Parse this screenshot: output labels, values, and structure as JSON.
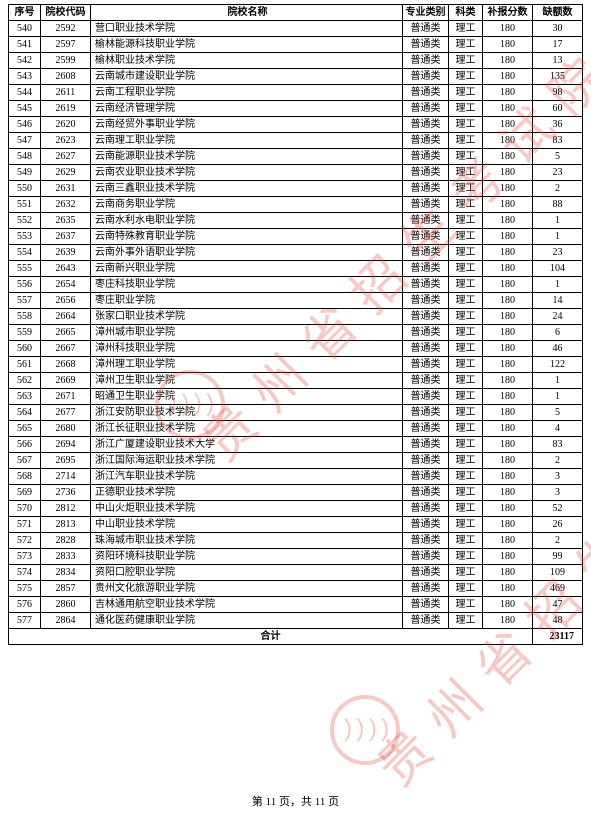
{
  "headers": {
    "seq": "序号",
    "code": "院校代码",
    "name": "院校名称",
    "major": "专业类别",
    "subj": "科类",
    "score": "补报分数",
    "vac": "缺额数"
  },
  "common": {
    "major": "普通类",
    "subj": "理工",
    "score": "180"
  },
  "rows": [
    {
      "seq": "540",
      "code": "2592",
      "name": "营口职业技术学院",
      "vac": "30"
    },
    {
      "seq": "541",
      "code": "2597",
      "name": "榆林能源科技职业学院",
      "vac": "17"
    },
    {
      "seq": "542",
      "code": "2599",
      "name": "榆林职业技术学院",
      "vac": "13"
    },
    {
      "seq": "543",
      "code": "2608",
      "name": "云南城市建设职业学院",
      "vac": "135"
    },
    {
      "seq": "544",
      "code": "2611",
      "name": "云南工程职业学院",
      "vac": "98"
    },
    {
      "seq": "545",
      "code": "2619",
      "name": "云南经济管理学院",
      "vac": "60"
    },
    {
      "seq": "546",
      "code": "2620",
      "name": "云南经贸外事职业学院",
      "vac": "36"
    },
    {
      "seq": "547",
      "code": "2623",
      "name": "云南理工职业学院",
      "vac": "83"
    },
    {
      "seq": "548",
      "code": "2627",
      "name": "云南能源职业技术学院",
      "vac": "5"
    },
    {
      "seq": "549",
      "code": "2629",
      "name": "云南农业职业技术学院",
      "vac": "23"
    },
    {
      "seq": "550",
      "code": "2631",
      "name": "云南三鑫职业技术学院",
      "vac": "2"
    },
    {
      "seq": "551",
      "code": "2632",
      "name": "云南商务职业学院",
      "vac": "88"
    },
    {
      "seq": "552",
      "code": "2635",
      "name": "云南水利水电职业学院",
      "vac": "1"
    },
    {
      "seq": "553",
      "code": "2637",
      "name": "云南特殊教育职业学院",
      "vac": "1"
    },
    {
      "seq": "554",
      "code": "2639",
      "name": "云南外事外语职业学院",
      "vac": "23"
    },
    {
      "seq": "555",
      "code": "2643",
      "name": "云南新兴职业学院",
      "vac": "104"
    },
    {
      "seq": "556",
      "code": "2654",
      "name": "枣庄科技职业学院",
      "vac": "1"
    },
    {
      "seq": "557",
      "code": "2656",
      "name": "枣庄职业学院",
      "vac": "14"
    },
    {
      "seq": "558",
      "code": "2664",
      "name": "张家口职业技术学院",
      "vac": "24"
    },
    {
      "seq": "559",
      "code": "2665",
      "name": "漳州城市职业学院",
      "vac": "6"
    },
    {
      "seq": "560",
      "code": "2667",
      "name": "漳州科技职业学院",
      "vac": "46"
    },
    {
      "seq": "561",
      "code": "2668",
      "name": "漳州理工职业学院",
      "vac": "122"
    },
    {
      "seq": "562",
      "code": "2669",
      "name": "漳州卫生职业学院",
      "vac": "1"
    },
    {
      "seq": "563",
      "code": "2671",
      "name": "昭通卫生职业学院",
      "vac": "1"
    },
    {
      "seq": "564",
      "code": "2677",
      "name": "浙江安防职业技术学院",
      "vac": "5"
    },
    {
      "seq": "565",
      "code": "2680",
      "name": "浙江长征职业技术学院",
      "vac": "4"
    },
    {
      "seq": "566",
      "code": "2694",
      "name": "浙江广厦建设职业技术大学",
      "vac": "83"
    },
    {
      "seq": "567",
      "code": "2695",
      "name": "浙江国际海运职业技术学院",
      "vac": "2"
    },
    {
      "seq": "568",
      "code": "2714",
      "name": "浙江汽车职业技术学院",
      "vac": "3"
    },
    {
      "seq": "569",
      "code": "2736",
      "name": "正德职业技术学院",
      "vac": "3"
    },
    {
      "seq": "570",
      "code": "2812",
      "name": "中山火炬职业技术学院",
      "vac": "52"
    },
    {
      "seq": "571",
      "code": "2813",
      "name": "中山职业技术学院",
      "vac": "26"
    },
    {
      "seq": "572",
      "code": "2828",
      "name": "珠海城市职业技术学院",
      "vac": "2"
    },
    {
      "seq": "573",
      "code": "2833",
      "name": "资阳环境科技职业学院",
      "vac": "99"
    },
    {
      "seq": "574",
      "code": "2834",
      "name": "资阳口腔职业学院",
      "vac": "109"
    },
    {
      "seq": "575",
      "code": "2857",
      "name": "贵州文化旅游职业学院",
      "vac": "469"
    },
    {
      "seq": "576",
      "code": "2860",
      "name": "吉林通用航空职业技术学院",
      "vac": "47"
    },
    {
      "seq": "577",
      "code": "2864",
      "name": "通化医药健康职业学院",
      "vac": "48"
    }
  ],
  "total": {
    "label": "合计",
    "value": "23117"
  },
  "footer": "第 11 页，共 11 页",
  "watermark_text": "贵州省招生考试院",
  "watermark_seal": "))))"
}
